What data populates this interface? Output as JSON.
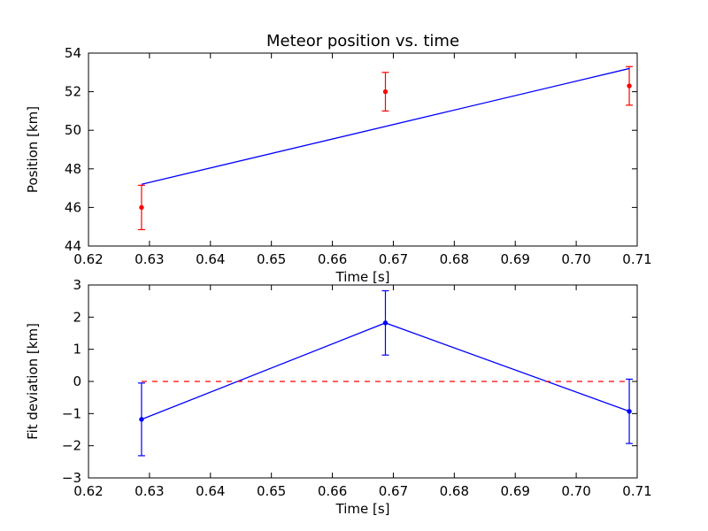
{
  "chart_data": [
    {
      "type": "scatter",
      "title": "Meteor position vs. time",
      "xlabel": "Time [s]",
      "ylabel": "Position [km]",
      "xlim": [
        0.62,
        0.71
      ],
      "ylim": [
        44,
        54
      ],
      "xticks": [
        "0.62",
        "0.63",
        "0.64",
        "0.65",
        "0.66",
        "0.67",
        "0.68",
        "0.69",
        "0.70",
        "0.71"
      ],
      "yticks": [
        "44",
        "46",
        "48",
        "50",
        "52",
        "54"
      ],
      "grid": false,
      "series": [
        {
          "kind": "errorbar",
          "color": "#ff0000",
          "x": [
            0.6287,
            0.6687,
            0.7087
          ],
          "y": [
            46.0,
            52.0,
            52.3
          ],
          "yerr": [
            1.15,
            1.0,
            1.0
          ]
        },
        {
          "kind": "line",
          "color": "#0000ff",
          "x": [
            0.6287,
            0.7087
          ],
          "y": [
            47.2,
            53.2
          ]
        }
      ]
    },
    {
      "type": "scatter",
      "title": "",
      "xlabel": "Time [s]",
      "ylabel": "Fit deviation [km]",
      "xlim": [
        0.62,
        0.71
      ],
      "ylim": [
        -3,
        3
      ],
      "xticks": [
        "0.62",
        "0.63",
        "0.64",
        "0.65",
        "0.66",
        "0.67",
        "0.68",
        "0.69",
        "0.70",
        "0.71"
      ],
      "yticks": [
        "−3",
        "−2",
        "−1",
        "0",
        "1",
        "2",
        "3"
      ],
      "grid": false,
      "series": [
        {
          "kind": "errorbar-line",
          "color": "#0000ff",
          "x": [
            0.6287,
            0.6687,
            0.7087
          ],
          "y": [
            -1.18,
            1.82,
            -0.93
          ],
          "yerr": [
            1.13,
            1.0,
            1.0
          ]
        },
        {
          "kind": "hline-dashed",
          "color": "#ff0000",
          "x": [
            0.6287,
            0.7087
          ],
          "y": [
            0,
            0
          ]
        }
      ]
    }
  ]
}
